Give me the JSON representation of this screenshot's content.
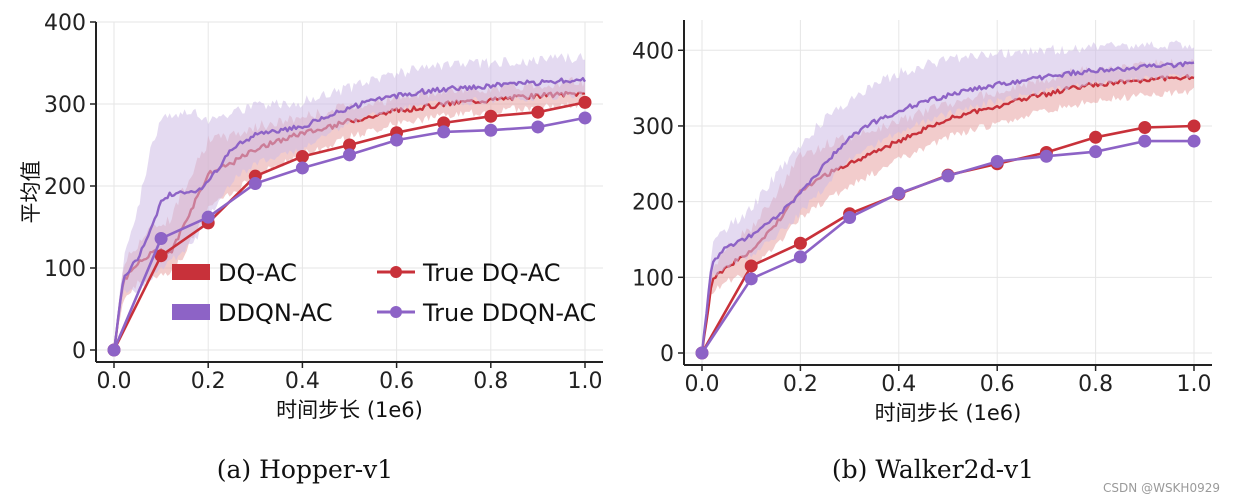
{
  "chart_data": [
    {
      "type": "line",
      "caption": "(a)  Hopper-v1",
      "xlabel": "时间步长 (1e6)",
      "ylabel": "平均值",
      "xlim": [
        0,
        1.0
      ],
      "ylim": [
        0,
        400
      ],
      "xticks": [
        "0.0",
        "0.2",
        "0.4",
        "0.6",
        "0.8",
        "1.0"
      ],
      "yticks": [
        "0",
        "100",
        "200",
        "300",
        "400"
      ],
      "grid": true,
      "legend": "bottom-right",
      "curves": [
        {
          "name": "DQ-AC",
          "color": "#c8313a",
          "band_color": "#e7a3a3",
          "x": [
            0.0,
            0.02,
            0.05,
            0.08,
            0.1,
            0.12,
            0.15,
            0.18,
            0.2,
            0.25,
            0.3,
            0.35,
            0.4,
            0.45,
            0.5,
            0.55,
            0.6,
            0.65,
            0.7,
            0.75,
            0.8,
            0.85,
            0.9,
            0.95,
            1.0
          ],
          "y": [
            0,
            85,
            105,
            118,
            120,
            118,
            155,
            190,
            215,
            228,
            245,
            255,
            265,
            270,
            280,
            285,
            292,
            295,
            300,
            303,
            305,
            308,
            310,
            312,
            313
          ],
          "lower": [
            0,
            65,
            80,
            88,
            90,
            90,
            118,
            150,
            175,
            190,
            212,
            225,
            240,
            248,
            260,
            268,
            276,
            280,
            285,
            288,
            291,
            294,
            296,
            298,
            299
          ],
          "upper": [
            0,
            105,
            130,
            150,
            155,
            160,
            200,
            235,
            255,
            262,
            272,
            278,
            285,
            290,
            298,
            302,
            308,
            311,
            315,
            318,
            320,
            322,
            324,
            326,
            327
          ]
        },
        {
          "name": "DDQN-AC",
          "color": "#8d63c6",
          "band_color": "#cdbbe6",
          "x": [
            0.0,
            0.02,
            0.05,
            0.08,
            0.1,
            0.12,
            0.15,
            0.18,
            0.2,
            0.25,
            0.3,
            0.35,
            0.4,
            0.45,
            0.5,
            0.55,
            0.6,
            0.65,
            0.7,
            0.75,
            0.8,
            0.85,
            0.9,
            0.95,
            1.0
          ],
          "y": [
            0,
            90,
            110,
            150,
            180,
            190,
            192,
            195,
            205,
            245,
            262,
            268,
            272,
            285,
            295,
            305,
            310,
            315,
            318,
            320,
            322,
            325,
            326,
            328,
            330
          ],
          "lower": [
            0,
            70,
            75,
            90,
            100,
            110,
            120,
            140,
            160,
            205,
            228,
            238,
            245,
            262,
            276,
            287,
            293,
            298,
            301,
            303,
            305,
            307,
            308,
            310,
            312
          ],
          "upper": [
            0,
            110,
            170,
            250,
            280,
            285,
            290,
            290,
            280,
            290,
            298,
            300,
            302,
            312,
            320,
            330,
            338,
            342,
            345,
            348,
            350,
            352,
            354,
            355,
            356
          ]
        }
      ],
      "markers": [
        {
          "name": "True DQ-AC",
          "color": "#c8313a",
          "x": [
            0.0,
            0.1,
            0.2,
            0.3,
            0.4,
            0.5,
            0.6,
            0.7,
            0.8,
            0.9,
            1.0
          ],
          "y": [
            0,
            115,
            155,
            212,
            236,
            250,
            265,
            277,
            285,
            290,
            302
          ]
        },
        {
          "name": "True DDQN-AC",
          "color": "#8d63c6",
          "x": [
            0.0,
            0.1,
            0.2,
            0.3,
            0.4,
            0.5,
            0.6,
            0.7,
            0.8,
            0.9,
            1.0
          ],
          "y": [
            0,
            136,
            162,
            203,
            222,
            238,
            256,
            266,
            268,
            272,
            283
          ]
        }
      ]
    },
    {
      "type": "line",
      "caption": "(b)  Walker2d-v1",
      "xlabel": "时间步长 (1e6)",
      "ylabel": "",
      "xlim": [
        0,
        1.0
      ],
      "ylim": [
        0,
        440
      ],
      "xticks": [
        "0.0",
        "0.2",
        "0.4",
        "0.6",
        "0.8",
        "1.0"
      ],
      "yticks": [
        "0",
        "100",
        "200",
        "300",
        "400"
      ],
      "grid": true,
      "legend": "",
      "curves": [
        {
          "name": "DQ-AC",
          "color": "#c8313a",
          "band_color": "#e7a3a3",
          "x": [
            0.0,
            0.02,
            0.05,
            0.08,
            0.1,
            0.15,
            0.2,
            0.25,
            0.3,
            0.35,
            0.4,
            0.45,
            0.5,
            0.55,
            0.6,
            0.65,
            0.7,
            0.75,
            0.8,
            0.85,
            0.9,
            0.95,
            1.0
          ],
          "y": [
            0,
            95,
            115,
            125,
            135,
            170,
            215,
            235,
            250,
            265,
            280,
            295,
            310,
            318,
            325,
            335,
            342,
            350,
            355,
            358,
            360,
            363,
            365
          ],
          "lower": [
            0,
            80,
            95,
            100,
            110,
            140,
            180,
            200,
            220,
            238,
            255,
            270,
            285,
            295,
            303,
            312,
            320,
            327,
            333,
            337,
            340,
            343,
            346
          ],
          "upper": [
            0,
            110,
            140,
            155,
            165,
            210,
            260,
            275,
            285,
            295,
            305,
            318,
            330,
            338,
            345,
            355,
            362,
            370,
            375,
            378,
            380,
            383,
            385
          ]
        },
        {
          "name": "DDQN-AC",
          "color": "#8d63c6",
          "band_color": "#cdbbe6",
          "x": [
            0.0,
            0.02,
            0.05,
            0.08,
            0.1,
            0.15,
            0.2,
            0.25,
            0.3,
            0.35,
            0.4,
            0.45,
            0.5,
            0.55,
            0.6,
            0.65,
            0.7,
            0.75,
            0.8,
            0.85,
            0.9,
            0.95,
            1.0
          ],
          "y": [
            0,
            120,
            140,
            150,
            155,
            180,
            210,
            250,
            285,
            305,
            320,
            332,
            340,
            348,
            355,
            360,
            365,
            370,
            373,
            375,
            378,
            380,
            382
          ],
          "lower": [
            0,
            100,
            115,
            125,
            130,
            155,
            185,
            220,
            255,
            275,
            292,
            305,
            316,
            325,
            333,
            340,
            346,
            352,
            356,
            359,
            362,
            365,
            367
          ],
          "upper": [
            0,
            140,
            165,
            180,
            190,
            235,
            275,
            310,
            335,
            355,
            370,
            380,
            388,
            392,
            395,
            398,
            400,
            402,
            404,
            405,
            406,
            407,
            408
          ]
        }
      ],
      "markers": [
        {
          "name": "True DQ-AC",
          "color": "#c8313a",
          "x": [
            0.0,
            0.1,
            0.2,
            0.3,
            0.4,
            0.5,
            0.6,
            0.7,
            0.8,
            0.9,
            1.0
          ],
          "y": [
            0,
            115,
            145,
            184,
            210,
            235,
            250,
            265,
            285,
            298,
            300
          ]
        },
        {
          "name": "True DDQN-AC",
          "color": "#8d63c6",
          "x": [
            0.0,
            0.1,
            0.2,
            0.3,
            0.4,
            0.5,
            0.6,
            0.7,
            0.8,
            0.9,
            1.0
          ],
          "y": [
            0,
            98,
            127,
            179,
            211,
            234,
            253,
            260,
            266,
            280,
            280
          ]
        }
      ]
    }
  ],
  "watermark": "CSDN @WSKH0929"
}
